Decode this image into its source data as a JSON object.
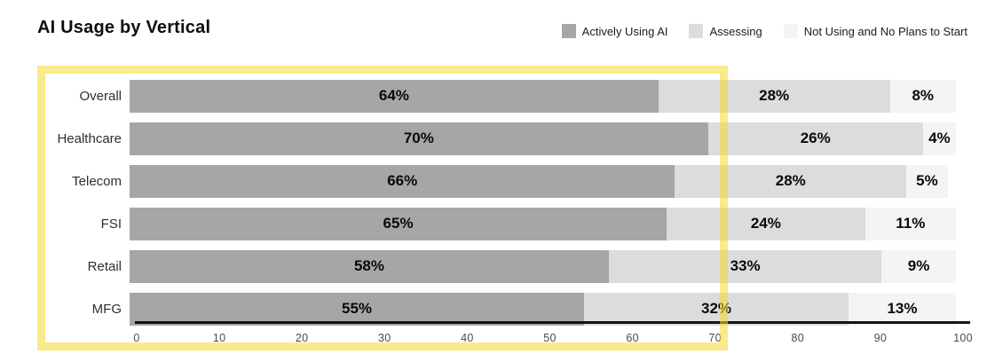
{
  "title": "AI Usage by Vertical",
  "chart_data": {
    "type": "bar",
    "orientation": "horizontal",
    "stacked": true,
    "title": "AI Usage by Vertical",
    "xlabel": "",
    "ylabel": "",
    "xlim": [
      0,
      100
    ],
    "x_ticks": [
      "0",
      "10",
      "20",
      "30",
      "40",
      "50",
      "60",
      "70",
      "80",
      "90",
      "100"
    ],
    "grid": false,
    "legend_position": "top-right",
    "value_suffix": "%",
    "categories": [
      "Overall",
      "Healthcare",
      "Telecom",
      "FSI",
      "Retail",
      "MFG"
    ],
    "series": [
      {
        "name": "Actively Using AI",
        "color": "#a6a6a6",
        "values": [
          64,
          70,
          66,
          65,
          58,
          55
        ]
      },
      {
        "name": "Assessing",
        "color": "#dcdcdc",
        "values": [
          28,
          26,
          28,
          24,
          33,
          32
        ]
      },
      {
        "name": "Not Using and No Plans to Start",
        "color": "#f4f4f4",
        "values": [
          8,
          4,
          5,
          11,
          9,
          13
        ]
      }
    ]
  },
  "annotation": {
    "type": "highlight-rectangle",
    "color": "#f8d82d"
  },
  "colors": {
    "background": "#ffffff",
    "axis_line": "#141414",
    "tick_text": "#4b4b4b",
    "value_text": "#0a0a0a"
  }
}
